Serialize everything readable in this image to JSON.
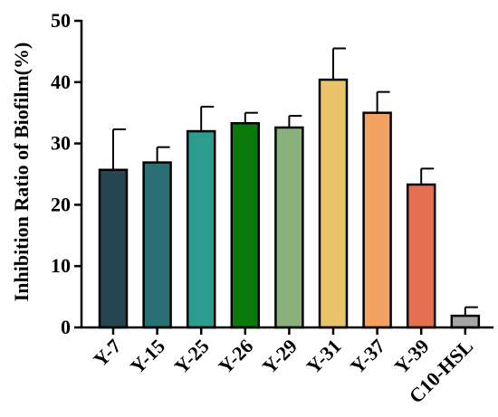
{
  "chart_data": {
    "type": "bar",
    "title": "",
    "xlabel": "",
    "ylabel": "Inhibition Ratio of Biofilm(%)",
    "ylim": [
      0,
      50
    ],
    "yticks": [
      0,
      10,
      20,
      30,
      40,
      50
    ],
    "grid": false,
    "categories": [
      "Y-7",
      "Y-15",
      "Y-25",
      "Y-26",
      "Y-29",
      "Y-31",
      "Y-37",
      "Y-39",
      "C10-HSL"
    ],
    "values": [
      25.7,
      26.9,
      32.0,
      33.3,
      32.6,
      40.4,
      35.0,
      23.3,
      1.9
    ],
    "errors": [
      6.6,
      2.5,
      4.0,
      1.7,
      1.9,
      5.1,
      3.4,
      2.6,
      1.4
    ],
    "colors": [
      "#264653",
      "#2a6f73",
      "#2a9d8f",
      "#0b7a0b",
      "#8ab17d",
      "#e9c46a",
      "#f4a261",
      "#e76f51",
      "#a6a6a6"
    ]
  }
}
